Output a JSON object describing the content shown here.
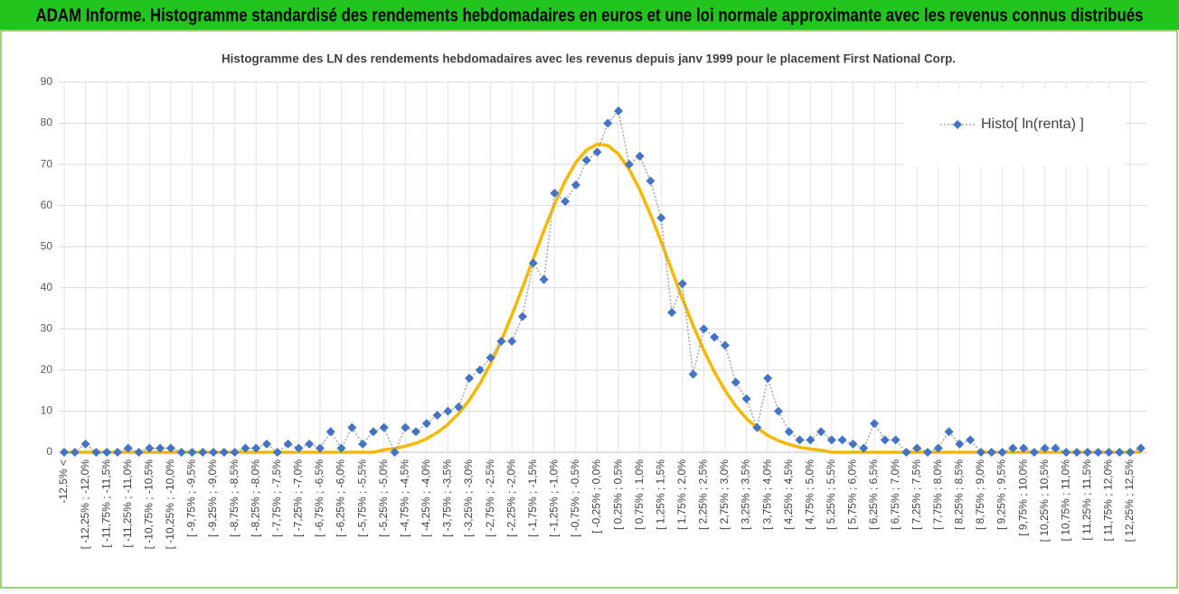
{
  "header": {
    "title": "ADAM Informe. Histogramme standardisé des rendements hebdomadaires en euros et une loi normale approximante avec les revenus connus distribués"
  },
  "chart_data": {
    "type": "line",
    "title": "Histogramme des LN des rendements hebdomadaires avec les revenus depuis janv 1999 pour le placement First National Corp.",
    "categories": [
      "-12,5% <",
      null,
      "[ -12,25% ; -12,0%",
      null,
      "[ -11,75% ; -11,5%",
      null,
      "[ -11,25% ; -11,0%",
      null,
      "[ -10,75% ; -10,5%",
      null,
      "[ -10,25% ; -10,0%",
      null,
      "[ -9,75% ; -9,5%",
      null,
      "[ -9,25% ; -9,0%",
      null,
      "[ -8,75% ; -8,5%",
      null,
      "[ -8,25% ; -8,0%",
      null,
      "[ -7,75% ; -7,5%",
      null,
      "[ -7,25% ; -7,0%",
      null,
      "[ -6,75% ; -6,5%",
      null,
      "[ -6,25% ; -6,0%",
      null,
      "[ -5,75% ; -5,5%",
      null,
      "[ -5,25% ; -5,0%",
      null,
      "[ -4,75% ; -4,5%",
      null,
      "[ -4,25% ; -4,0%",
      null,
      "[ -3,75% ; -3,5%",
      null,
      "[ -3,25% ; -3,0%",
      null,
      "[ -2,75% ; -2,5%",
      null,
      "[ -2,25% ; -2,0%",
      null,
      "[ -1,75% ; -1,5%",
      null,
      "[ -1,25% ; -1,0%",
      null,
      "[ -0,75% ; -0,5%",
      null,
      "[ -0,25% ; 0,0%",
      null,
      "[ 0,25% ; 0,5%",
      null,
      "[ 0,75% ; 1,0%",
      null,
      "[ 1,25% ; 1,5%",
      null,
      "[ 1,75% ; 2,0%",
      null,
      "[ 2,25% ; 2,5%",
      null,
      "[ 2,75% ; 3,0%",
      null,
      "[ 3,25% ; 3,5%",
      null,
      "[ 3,75% ; 4,0%",
      null,
      "[ 4,25% ; 4,5%",
      null,
      "[ 4,75% ; 5,0%",
      null,
      "[ 5,25% ; 5,5%",
      null,
      "[ 5,75% ; 6,0%",
      null,
      "[ 6,25% ; 6,5%",
      null,
      "[ 6,75% ; 7,0%",
      null,
      "[ 7,25% ; 7,5%",
      null,
      "[ 7,75% ; 8,0%",
      null,
      "[ 8,25% ; 8,5%",
      null,
      "[ 8,75% ; 9,0%",
      null,
      "[ 9,25% ; 9,5%",
      null,
      "[ 9,75% ; 10,0%",
      null,
      "[ 10,25% ; 10,5%",
      null,
      "[ 10,75% ; 11,0%",
      null,
      "[ 11,25% ; 11,5%",
      null,
      "[ 11,75% ; 12,0%",
      null,
      "[ 12,25% ; 12,5%",
      null
    ],
    "series": [
      {
        "name": "Histo[ ln(renta) ]",
        "color": "#4472c4",
        "line_color": "#a5a5a5",
        "marker": "diamond",
        "values": [
          0,
          0,
          2,
          0,
          0,
          0,
          1,
          0,
          1,
          1,
          1,
          0,
          0,
          0,
          0,
          0,
          0,
          1,
          1,
          2,
          0,
          2,
          1,
          2,
          1,
          5,
          1,
          6,
          2,
          5,
          6,
          0,
          6,
          5,
          7,
          9,
          10,
          11,
          18,
          20,
          23,
          27,
          27,
          33,
          46,
          42,
          63,
          61,
          65,
          71,
          73,
          80,
          83,
          70,
          72,
          66,
          57,
          34,
          41,
          19,
          30,
          28,
          26,
          17,
          13,
          6,
          18,
          10,
          5,
          3,
          3,
          5,
          3,
          3,
          2,
          1,
          7,
          3,
          3,
          0,
          1,
          0,
          1,
          5,
          2,
          3,
          0,
          0,
          0,
          1,
          1,
          0,
          1,
          1,
          0,
          0,
          0,
          0,
          0,
          0,
          0,
          1
        ]
      },
      {
        "color": "#f5b800",
        "marker": "none",
        "values": [
          0,
          0,
          0,
          0,
          0,
          0,
          0,
          0,
          0,
          0,
          0,
          0,
          0,
          0,
          0,
          0,
          0,
          0,
          0,
          0,
          0,
          0,
          0,
          0,
          0,
          0,
          0,
          0,
          0,
          0,
          0.6,
          0.9,
          1.5,
          2.2,
          3.3,
          4.8,
          6.8,
          9.4,
          12.7,
          16.7,
          21.5,
          27.1,
          33.4,
          40.1,
          47.0,
          53.9,
          60.3,
          66.0,
          70.5,
          73.5,
          74.9,
          74.6,
          72.5,
          68.8,
          63.8,
          57.8,
          51.2,
          44.2,
          37.3,
          30.8,
          24.8,
          19.5,
          15.0,
          11.2,
          8.2,
          5.9,
          4.1,
          2.8,
          1.9,
          1.2,
          0.8,
          0.5,
          0,
          0,
          0,
          0,
          0,
          0,
          0,
          0,
          0,
          0,
          0,
          0,
          0,
          0,
          0,
          0,
          0,
          0,
          0,
          0,
          0,
          0,
          0,
          0,
          0,
          0,
          0,
          0,
          0,
          0
        ]
      }
    ],
    "ylim": [
      0,
      90
    ],
    "yticks": [
      0,
      10,
      20,
      30,
      40,
      50,
      60,
      70,
      80,
      90
    ],
    "grid": true,
    "legend": "upper right"
  }
}
